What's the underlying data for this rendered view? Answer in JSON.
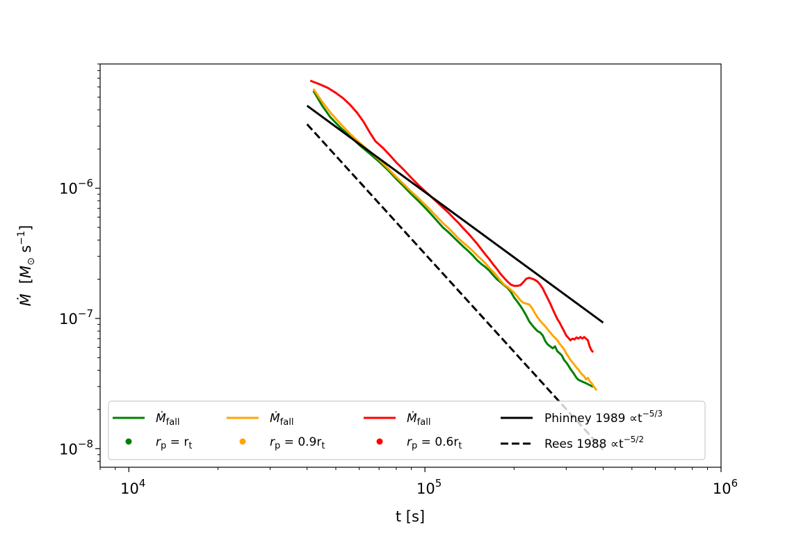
{
  "chart_data": {
    "type": "line",
    "x_scale": "log",
    "y_scale": "log",
    "xlim": [
      8000,
      1000000
    ],
    "ylim": [
      7.2e-09,
      9e-06
    ],
    "xlabel": "t [s]",
    "ylabel": {
      "main": "Ṁ",
      "unit_prefix": "[",
      "unit_M": "M",
      "unit_sub": "⊙",
      "unit_s": " s",
      "unit_sup": "−1",
      "unit_suffix": "]"
    },
    "x_ticks": [
      {
        "value": 10000,
        "base": "10",
        "exp": "4"
      },
      {
        "value": 100000,
        "base": "10",
        "exp": "5"
      },
      {
        "value": 1000000,
        "base": "10",
        "exp": "6"
      }
    ],
    "y_ticks": [
      {
        "value": 1e-08,
        "base": "10",
        "exp": "−8"
      },
      {
        "value": 1e-07,
        "base": "10",
        "exp": "−7"
      },
      {
        "value": 1e-06,
        "base": "10",
        "exp": "−6"
      }
    ],
    "grid": false,
    "legend_position": "lower-center",
    "series": [
      {
        "id": "green",
        "color": "#008000",
        "dash": false,
        "label_main": "Ṁ",
        "label_sub": "fall",
        "marker_label": "r",
        "marker_sub": "p",
        "marker_eq": " = r",
        "marker_sub2": "t",
        "points": [
          [
            42000,
            5.6e-06
          ],
          [
            45000,
            4.3e-06
          ],
          [
            48000,
            3.5e-06
          ],
          [
            52000,
            2.9e-06
          ],
          [
            56000,
            2.5e-06
          ],
          [
            60000,
            2.15e-06
          ],
          [
            65000,
            1.85e-06
          ],
          [
            70000,
            1.6e-06
          ],
          [
            75000,
            1.38e-06
          ],
          [
            80000,
            1.18e-06
          ],
          [
            85000,
            1.03e-06
          ],
          [
            90000,
            9e-07
          ],
          [
            95000,
            8e-07
          ],
          [
            100000,
            7.1e-07
          ],
          [
            105000,
            6.3e-07
          ],
          [
            110000,
            5.6e-07
          ],
          [
            115000,
            5e-07
          ],
          [
            120000,
            4.6e-07
          ],
          [
            125000,
            4.2e-07
          ],
          [
            130000,
            3.85e-07
          ],
          [
            135000,
            3.55e-07
          ],
          [
            140000,
            3.3e-07
          ],
          [
            145000,
            3.05e-07
          ],
          [
            150000,
            2.8e-07
          ],
          [
            155000,
            2.62e-07
          ],
          [
            160000,
            2.48e-07
          ],
          [
            165000,
            2.33e-07
          ],
          [
            170000,
            2.15e-07
          ],
          [
            175000,
            2e-07
          ],
          [
            180000,
            1.9e-07
          ],
          [
            185000,
            1.8e-07
          ],
          [
            190000,
            1.72e-07
          ],
          [
            195000,
            1.6e-07
          ],
          [
            200000,
            1.45e-07
          ],
          [
            205000,
            1.35e-07
          ],
          [
            210000,
            1.25e-07
          ],
          [
            215000,
            1.15e-07
          ],
          [
            220000,
            1.05e-07
          ],
          [
            225000,
            9.5e-08
          ],
          [
            230000,
            8.9e-08
          ],
          [
            235000,
            8.4e-08
          ],
          [
            240000,
            8e-08
          ],
          [
            245000,
            7.8e-08
          ],
          [
            250000,
            7.4e-08
          ],
          [
            255000,
            6.7e-08
          ],
          [
            260000,
            6.3e-08
          ],
          [
            265000,
            6.1e-08
          ],
          [
            270000,
            5.9e-08
          ],
          [
            275000,
            6.1e-08
          ],
          [
            280000,
            5.6e-08
          ],
          [
            285000,
            5.4e-08
          ],
          [
            290000,
            5.2e-08
          ],
          [
            295000,
            4.8e-08
          ],
          [
            300000,
            4.6e-08
          ],
          [
            305000,
            4.35e-08
          ],
          [
            310000,
            4.1e-08
          ],
          [
            315000,
            3.9e-08
          ],
          [
            320000,
            3.7e-08
          ],
          [
            325000,
            3.5e-08
          ],
          [
            330000,
            3.38e-08
          ],
          [
            340000,
            3.27e-08
          ],
          [
            350000,
            3.18e-08
          ],
          [
            360000,
            3.08e-08
          ],
          [
            370000,
            2.98e-08
          ]
        ]
      },
      {
        "id": "orange",
        "color": "#ffa500",
        "dash": false,
        "label_main": "Ṁ",
        "label_sub": "fall",
        "marker_label": "r",
        "marker_sub": "p",
        "marker_eq": " = 0.9r",
        "marker_sub2": "t",
        "points": [
          [
            42000,
            5.8e-06
          ],
          [
            45000,
            4.6e-06
          ],
          [
            48000,
            3.8e-06
          ],
          [
            52000,
            3.1e-06
          ],
          [
            56000,
            2.6e-06
          ],
          [
            60000,
            2.25e-06
          ],
          [
            65000,
            1.92e-06
          ],
          [
            70000,
            1.66e-06
          ],
          [
            75000,
            1.42e-06
          ],
          [
            80000,
            1.22e-06
          ],
          [
            85000,
            1.07e-06
          ],
          [
            90000,
            9.4e-07
          ],
          [
            95000,
            8.4e-07
          ],
          [
            100000,
            7.5e-07
          ],
          [
            105000,
            6.7e-07
          ],
          [
            110000,
            6e-07
          ],
          [
            115000,
            5.4e-07
          ],
          [
            120000,
            4.95e-07
          ],
          [
            125000,
            4.5e-07
          ],
          [
            130000,
            4.1e-07
          ],
          [
            135000,
            3.8e-07
          ],
          [
            140000,
            3.55e-07
          ],
          [
            145000,
            3.3e-07
          ],
          [
            150000,
            3.05e-07
          ],
          [
            155000,
            2.85e-07
          ],
          [
            160000,
            2.65e-07
          ],
          [
            165000,
            2.45e-07
          ],
          [
            170000,
            2.28e-07
          ],
          [
            175000,
            2.12e-07
          ],
          [
            180000,
            1.95e-07
          ],
          [
            185000,
            1.82e-07
          ],
          [
            190000,
            1.75e-07
          ],
          [
            195000,
            1.66e-07
          ],
          [
            200000,
            1.58e-07
          ],
          [
            205000,
            1.48e-07
          ],
          [
            210000,
            1.38e-07
          ],
          [
            215000,
            1.32e-07
          ],
          [
            220000,
            1.3e-07
          ],
          [
            225000,
            1.28e-07
          ],
          [
            230000,
            1.2e-07
          ],
          [
            235000,
            1.1e-07
          ],
          [
            240000,
            1.02e-07
          ],
          [
            245000,
            9.6e-08
          ],
          [
            250000,
            9.1e-08
          ],
          [
            255000,
            8.7e-08
          ],
          [
            260000,
            8.2e-08
          ],
          [
            265000,
            7.8e-08
          ],
          [
            270000,
            7.4e-08
          ],
          [
            275000,
            7.1e-08
          ],
          [
            280000,
            6.8e-08
          ],
          [
            285000,
            6.4e-08
          ],
          [
            290000,
            6.1e-08
          ],
          [
            295000,
            5.8e-08
          ],
          [
            300000,
            5.4e-08
          ],
          [
            305000,
            5.1e-08
          ],
          [
            310000,
            4.8e-08
          ],
          [
            315000,
            4.6e-08
          ],
          [
            320000,
            4.4e-08
          ],
          [
            325000,
            4.2e-08
          ],
          [
            330000,
            4.05e-08
          ],
          [
            335000,
            3.85e-08
          ],
          [
            340000,
            3.7e-08
          ],
          [
            345000,
            3.6e-08
          ],
          [
            350000,
            3.4e-08
          ],
          [
            355000,
            3.5e-08
          ],
          [
            360000,
            3.3e-08
          ],
          [
            365000,
            3.2e-08
          ],
          [
            370000,
            3.05e-08
          ],
          [
            380000,
            2.8e-08
          ]
        ]
      },
      {
        "id": "red",
        "color": "#ff0000",
        "dash": false,
        "label_main": "Ṁ",
        "label_sub": "fall",
        "marker_label": "r",
        "marker_sub": "p",
        "marker_eq": " = 0.6r",
        "marker_sub2": "t",
        "points": [
          [
            41000,
            6.7e-06
          ],
          [
            44000,
            6.3e-06
          ],
          [
            47000,
            5.9e-06
          ],
          [
            50000,
            5.4e-06
          ],
          [
            53000,
            4.9e-06
          ],
          [
            56000,
            4.35e-06
          ],
          [
            59000,
            3.8e-06
          ],
          [
            62000,
            3.25e-06
          ],
          [
            65000,
            2.7e-06
          ],
          [
            68000,
            2.3e-06
          ],
          [
            72000,
            2.05e-06
          ],
          [
            76000,
            1.8e-06
          ],
          [
            80000,
            1.58e-06
          ],
          [
            85000,
            1.38e-06
          ],
          [
            90000,
            1.2e-06
          ],
          [
            95000,
            1.06e-06
          ],
          [
            100000,
            9.5e-07
          ],
          [
            105000,
            8.6e-07
          ],
          [
            110000,
            7.8e-07
          ],
          [
            115000,
            7.1e-07
          ],
          [
            120000,
            6.5e-07
          ],
          [
            125000,
            5.9e-07
          ],
          [
            130000,
            5.4e-07
          ],
          [
            135000,
            4.9e-07
          ],
          [
            140000,
            4.5e-07
          ],
          [
            145000,
            4.1e-07
          ],
          [
            150000,
            3.75e-07
          ],
          [
            155000,
            3.4e-07
          ],
          [
            160000,
            3.1e-07
          ],
          [
            165000,
            2.85e-07
          ],
          [
            170000,
            2.6e-07
          ],
          [
            175000,
            2.4e-07
          ],
          [
            180000,
            2.2e-07
          ],
          [
            185000,
            2.05e-07
          ],
          [
            190000,
            1.92e-07
          ],
          [
            195000,
            1.82e-07
          ],
          [
            200000,
            1.78e-07
          ],
          [
            205000,
            1.78e-07
          ],
          [
            210000,
            1.8e-07
          ],
          [
            215000,
            1.9e-07
          ],
          [
            220000,
            2.02e-07
          ],
          [
            225000,
            2.05e-07
          ],
          [
            230000,
            2.02e-07
          ],
          [
            235000,
            1.98e-07
          ],
          [
            240000,
            1.92e-07
          ],
          [
            245000,
            1.82e-07
          ],
          [
            250000,
            1.7e-07
          ],
          [
            255000,
            1.55e-07
          ],
          [
            260000,
            1.42e-07
          ],
          [
            265000,
            1.3e-07
          ],
          [
            270000,
            1.18e-07
          ],
          [
            275000,
            1.08e-07
          ],
          [
            280000,
            9.9e-08
          ],
          [
            285000,
            9.3e-08
          ],
          [
            290000,
            8.6e-08
          ],
          [
            295000,
            8e-08
          ],
          [
            300000,
            7.4e-08
          ],
          [
            305000,
            7.1e-08
          ],
          [
            310000,
            6.8e-08
          ],
          [
            315000,
            7e-08
          ],
          [
            320000,
            6.9e-08
          ],
          [
            325000,
            7.15e-08
          ],
          [
            330000,
            7e-08
          ],
          [
            335000,
            7.2e-08
          ],
          [
            340000,
            7e-08
          ],
          [
            345000,
            7.2e-08
          ],
          [
            350000,
            7e-08
          ],
          [
            355000,
            6.8e-08
          ],
          [
            360000,
            6.1e-08
          ],
          [
            365000,
            5.7e-08
          ],
          [
            370000,
            5.5e-08
          ]
        ]
      },
      {
        "id": "phinney",
        "color": "#000000",
        "dash": false,
        "label_text": "Phinney 1989 ∝t",
        "label_sup": "−5/3",
        "points": [
          [
            40000,
            4.3e-06
          ],
          [
            400000,
            9.28e-08
          ]
        ]
      },
      {
        "id": "rees",
        "color": "#000000",
        "dash": true,
        "label_text": "Rees 1988 ∝t",
        "label_sup": "−5/2",
        "points": [
          [
            40000,
            3.1e-06
          ],
          [
            400000,
            9.8e-09
          ]
        ]
      }
    ]
  }
}
